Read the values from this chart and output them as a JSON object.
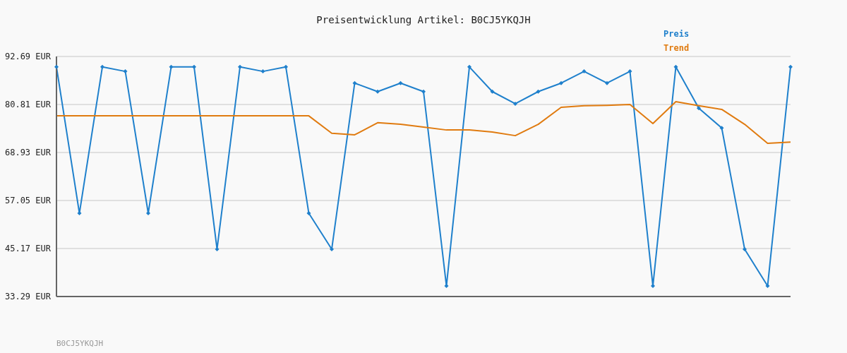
{
  "chart_data": {
    "type": "line",
    "title": "Preisentwicklung Artikel: B0CJ5YKQJH",
    "annotations": [
      "B0CJ5YKQJH"
    ],
    "categories": [
      null,
      null,
      null,
      null,
      null,
      null,
      null,
      null,
      null,
      null,
      null,
      null,
      null,
      null,
      null,
      null,
      null,
      null,
      null,
      null,
      null,
      null,
      null,
      null,
      null,
      null,
      null,
      null,
      null,
      null,
      null,
      null,
      null
    ],
    "series": [
      {
        "name": "Preis",
        "color": "#1f80cc",
        "marker": "diamond",
        "values": [
          90.1,
          53.9,
          90.1,
          89.0,
          53.9,
          90.1,
          90.1,
          45.0,
          90.1,
          89.0,
          90.1,
          53.9,
          45.0,
          86.1,
          84.0,
          86.1,
          84.0,
          35.9,
          90.1,
          84.0,
          81.0,
          84.0,
          86.1,
          89.0,
          86.1,
          89.0,
          35.9,
          90.1,
          79.9,
          75.0,
          45.0,
          35.9,
          90.1
        ]
      },
      {
        "name": "Trend",
        "color": "#e07b10",
        "marker": "none",
        "values": [
          78.0,
          78.0,
          78.0,
          78.0,
          78.0,
          78.0,
          78.0,
          78.0,
          78.0,
          78.0,
          78.0,
          78.0,
          73.7,
          73.3,
          76.3,
          75.9,
          75.2,
          74.5,
          74.5,
          74.0,
          73.1,
          75.9,
          80.1,
          80.5,
          80.6,
          80.8,
          76.1,
          81.5,
          80.5,
          79.6,
          75.9,
          71.2,
          71.5
        ]
      }
    ],
    "ylim": [
      33.29,
      92.69
    ],
    "yticks": [
      {
        "value": 33.29,
        "label": "33.29 EUR"
      },
      {
        "value": 45.17,
        "label": "45.17 EUR"
      },
      {
        "value": 57.05,
        "label": "57.05 EUR"
      },
      {
        "value": 68.93,
        "label": "68.93 EUR"
      },
      {
        "value": 80.81,
        "label": "80.81 EUR"
      },
      {
        "value": 92.69,
        "label": "92.69 EUR"
      }
    ],
    "grid": "y",
    "legend": "top right",
    "tick_labels": "y",
    "line_style": "solid"
  }
}
